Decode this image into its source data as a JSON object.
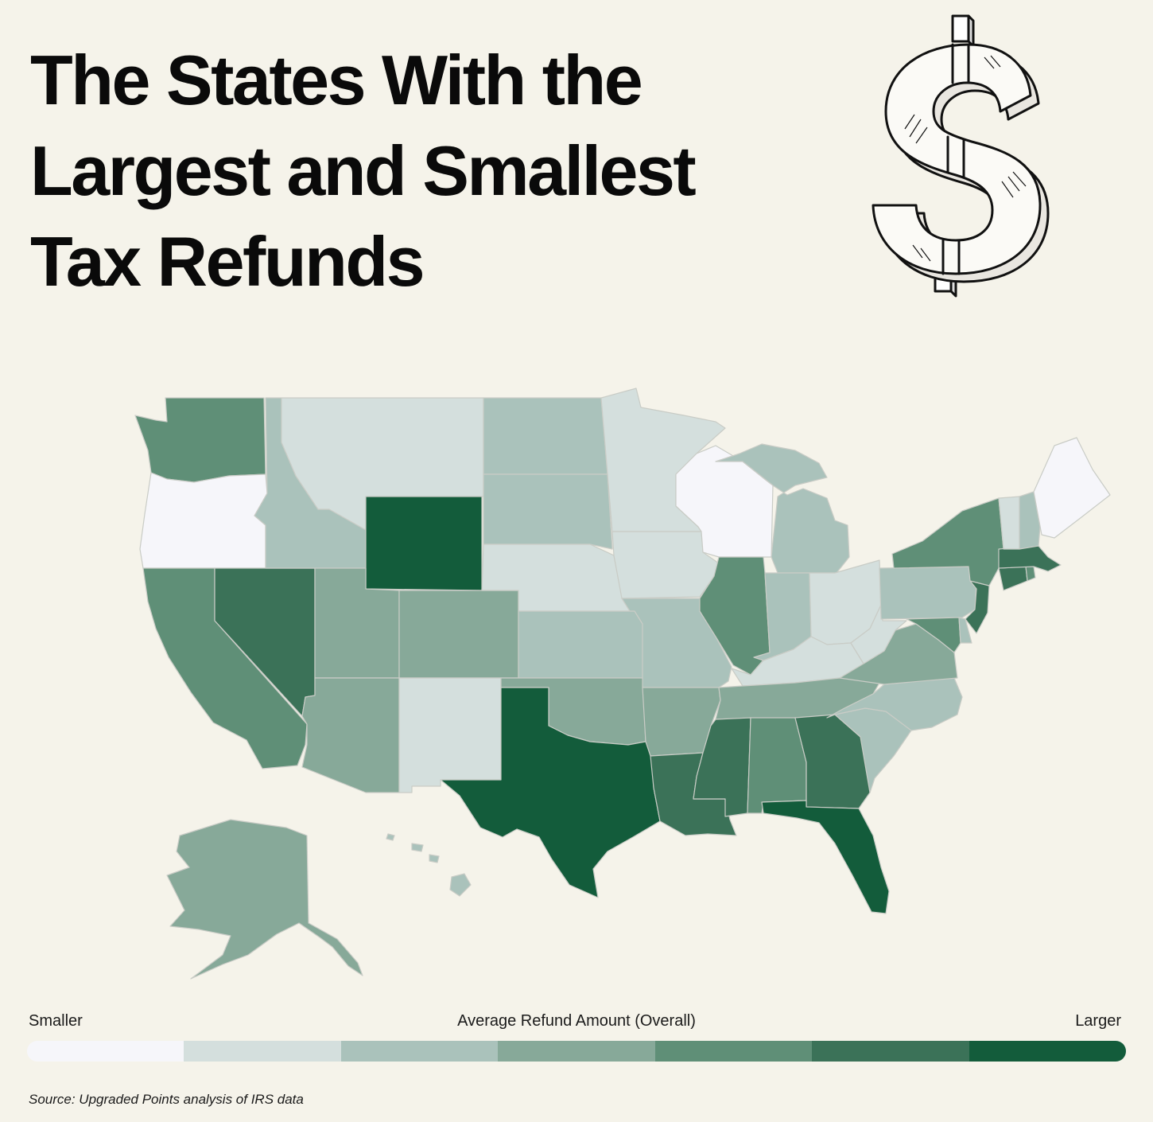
{
  "title_lines": [
    "The States With the",
    "Largest and Smallest",
    "Tax Refunds"
  ],
  "palette": [
    "#f6f6fa",
    "#d4dfdd",
    "#aac2bb",
    "#87a999",
    "#5f8f77",
    "#3b7258",
    "#135c3b"
  ],
  "map_data": {
    "scale": "7-class sequential (0 = smaller refunds, 6 = larger refunds)",
    "states": {
      "WA": 4,
      "OR": 0,
      "CA": 4,
      "NV": 5,
      "ID": 2,
      "MT": 1,
      "WY": 6,
      "UT": 3,
      "AZ": 3,
      "CO": 3,
      "NM": 1,
      "ND": 2,
      "SD": 2,
      "NE": 1,
      "KS": 2,
      "OK": 3,
      "TX": 6,
      "MN": 1,
      "IA": 1,
      "MO": 2,
      "AR": 3,
      "LA": 5,
      "WI": 0,
      "IL": 4,
      "MI": 2,
      "IN": 2,
      "OH": 1,
      "KY": 1,
      "TN": 3,
      "MS": 5,
      "AL": 4,
      "GA": 5,
      "FL": 6,
      "SC": 2,
      "NC": 2,
      "VA": 3,
      "WV": 1,
      "MD": 4,
      "DE": 2,
      "PA": 2,
      "NJ": 5,
      "NY": 4,
      "CT": 5,
      "RI": 4,
      "MA": 5,
      "VT": 1,
      "NH": 2,
      "ME": 0,
      "AK": 3,
      "HI": 2
    }
  },
  "legend": {
    "left": "Smaller",
    "center": "Average Refund Amount (Overall)",
    "right": "Larger"
  },
  "source": "Source: Upgraded Points analysis of IRS data"
}
